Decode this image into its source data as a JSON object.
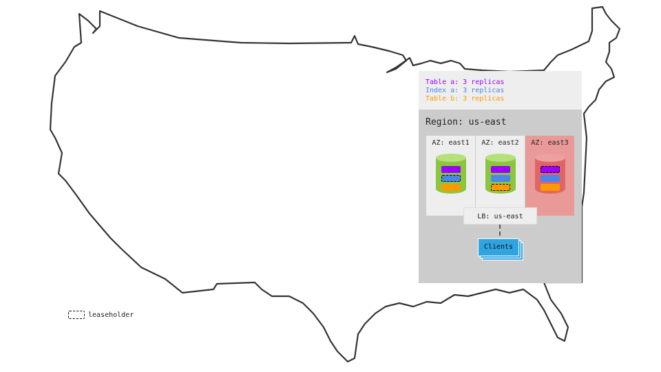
{
  "legend": {
    "items": [
      {
        "label": "Table a: 3 replicas",
        "color": "#9900ff"
      },
      {
        "label": "Index a: 3 replicas",
        "color": "#4a86e8"
      },
      {
        "label": "Table b: 3 replicas",
        "color": "#ff9900"
      }
    ],
    "leaseholder_label": "leaseholder"
  },
  "region": {
    "title": "Region: us-east",
    "zones": [
      {
        "label": "AZ: east1",
        "status": "healthy",
        "leaseholder": "Index a"
      },
      {
        "label": "AZ: east2",
        "status": "healthy",
        "leaseholder": "Table b"
      },
      {
        "label": "AZ: east3",
        "status": "failed",
        "leaseholder": "Table a"
      }
    ],
    "load_balancer": "LB: us-east",
    "clients": "Clients"
  },
  "colors": {
    "healthy_node": "#8cc63f",
    "failed_node": "#e06666",
    "failed_zone": "#ea9999",
    "clients": "#2fa4e0"
  }
}
